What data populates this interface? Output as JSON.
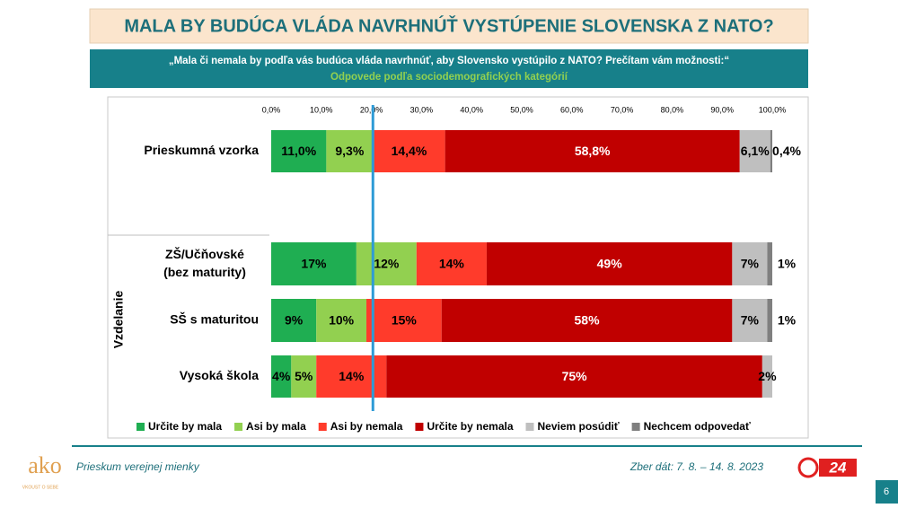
{
  "header": {
    "title": "MALA BY BUDÚCA VLÁDA NAVRHNÚŤ VYSTÚPENIE SLOVENSKA Z NATO?",
    "question": "„Mala či nemala by podľa vás budúca vláda navrhnúť, aby Slovensko vystúpilo z NATO? Prečítam vám možnosti:“",
    "subtitle": "Odpovede podľa sociodemografických kategórií"
  },
  "chart_data": {
    "type": "stacked-bar-horizontal",
    "categories": [
      "Prieskumná vzorka",
      "ZŠ/Učňovské (bez maturity)",
      "SŠ s maturitou",
      "Vysoká škola"
    ],
    "group_label": "Vzdelanie",
    "xlim": [
      0,
      100
    ],
    "xticks": [
      {
        "value": 0,
        "label": "0,0%"
      },
      {
        "value": 10,
        "label": "10,0%"
      },
      {
        "value": 20,
        "label": "20,0%"
      },
      {
        "value": 30,
        "label": "30,0%"
      },
      {
        "value": 40,
        "label": "40,0%"
      },
      {
        "value": 50,
        "label": "50,0%"
      },
      {
        "value": 60,
        "label": "60,0%"
      },
      {
        "value": 70,
        "label": "70,0%"
      },
      {
        "value": 80,
        "label": "80,0%"
      },
      {
        "value": 90,
        "label": "90,0%"
      },
      {
        "value": 100,
        "label": "100,0%"
      }
    ],
    "reference_line": 20.3,
    "reference_color": "#2e9bd6",
    "series": [
      {
        "name": "Určite by mala",
        "color": "#1fae52",
        "values": [
          11.0,
          17,
          9,
          4
        ],
        "value_labels": [
          "11,0%",
          "17%",
          "9%",
          "4%"
        ]
      },
      {
        "name": "Asi by mala",
        "color": "#92d050",
        "values": [
          9.3,
          12,
          10,
          5
        ],
        "value_labels": [
          "9,3%",
          "12%",
          "10%",
          "5%"
        ]
      },
      {
        "name": "Asi by nemala",
        "color": "#ff3b2b",
        "values": [
          14.4,
          14,
          15,
          14
        ],
        "value_labels": [
          "14,4%",
          "14%",
          "15%",
          "14%"
        ]
      },
      {
        "name": "Určite by nemala",
        "color": "#c00000",
        "values": [
          58.8,
          49,
          58,
          75
        ],
        "value_labels": [
          "58,8%",
          "49%",
          "58%",
          "75%"
        ]
      },
      {
        "name": "Neviem posúdiť",
        "color": "#bfbfbf",
        "values": [
          6.1,
          7,
          7,
          2
        ],
        "value_labels": [
          "6,1%",
          "7%",
          "7%",
          "2%"
        ]
      },
      {
        "name": "Nechcem odpovedať",
        "color": "#7f7f7f",
        "values": [
          0.4,
          1,
          1,
          0
        ],
        "value_labels": [
          "0,4%",
          "1%",
          "1%",
          null
        ]
      }
    ]
  },
  "footer": {
    "left": "Prieskum verejnej mienky",
    "right": "Zber dát: 7. 8. – 14. 8. 2023",
    "page": "6",
    "logo": "ako",
    "logo_tagline": "VKOUST O SEBE",
    "brand": "24"
  }
}
